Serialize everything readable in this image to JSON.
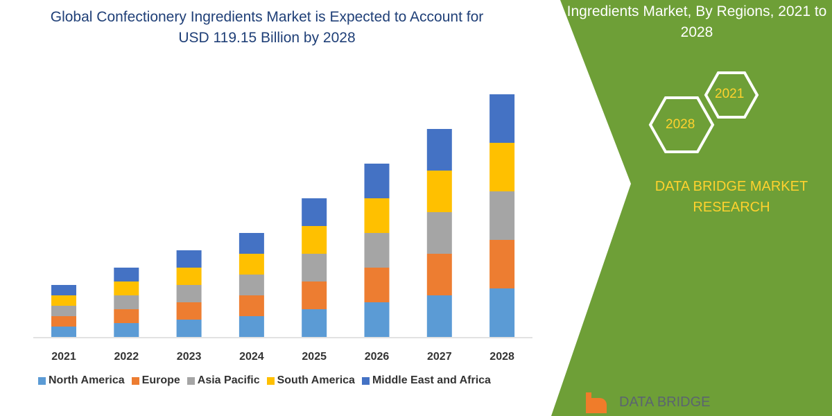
{
  "chart_data": {
    "type": "bar",
    "stacked": true,
    "title": "Global Confectionery Ingredients Market is Expected to Account for USD 119.15 Billion by 2028",
    "categories": [
      "2021",
      "2022",
      "2023",
      "2024",
      "2025",
      "2026",
      "2027",
      "2028"
    ],
    "series": [
      {
        "name": "North America",
        "color": "#5b9bd5",
        "values": [
          15,
          20,
          25,
          30,
          40,
          50,
          60,
          70
        ]
      },
      {
        "name": "Europe",
        "color": "#ed7d31",
        "values": [
          15,
          20,
          25,
          30,
          40,
          50,
          60,
          70
        ]
      },
      {
        "name": "Asia Pacific",
        "color": "#a5a5a5",
        "values": [
          15,
          20,
          25,
          30,
          40,
          50,
          60,
          70
        ]
      },
      {
        "name": "South America",
        "color": "#ffc000",
        "values": [
          15,
          20,
          25,
          30,
          40,
          50,
          60,
          70
        ]
      },
      {
        "name": "Middle East and Africa",
        "color": "#4472c4",
        "values": [
          15,
          20,
          25,
          30,
          40,
          50,
          60,
          70
        ]
      }
    ],
    "xlabel": "",
    "ylabel": "",
    "grid": false,
    "legend": "bottom"
  },
  "side": {
    "title": "Ingredients Market, By Regions, 2021 to 2028",
    "hex_a": "2021",
    "hex_b": "2028",
    "brand": "DATA BRIDGE MARKET RESEARCH",
    "logo": "DATA BRIDGE",
    "panel_color": "#6e9f37"
  }
}
